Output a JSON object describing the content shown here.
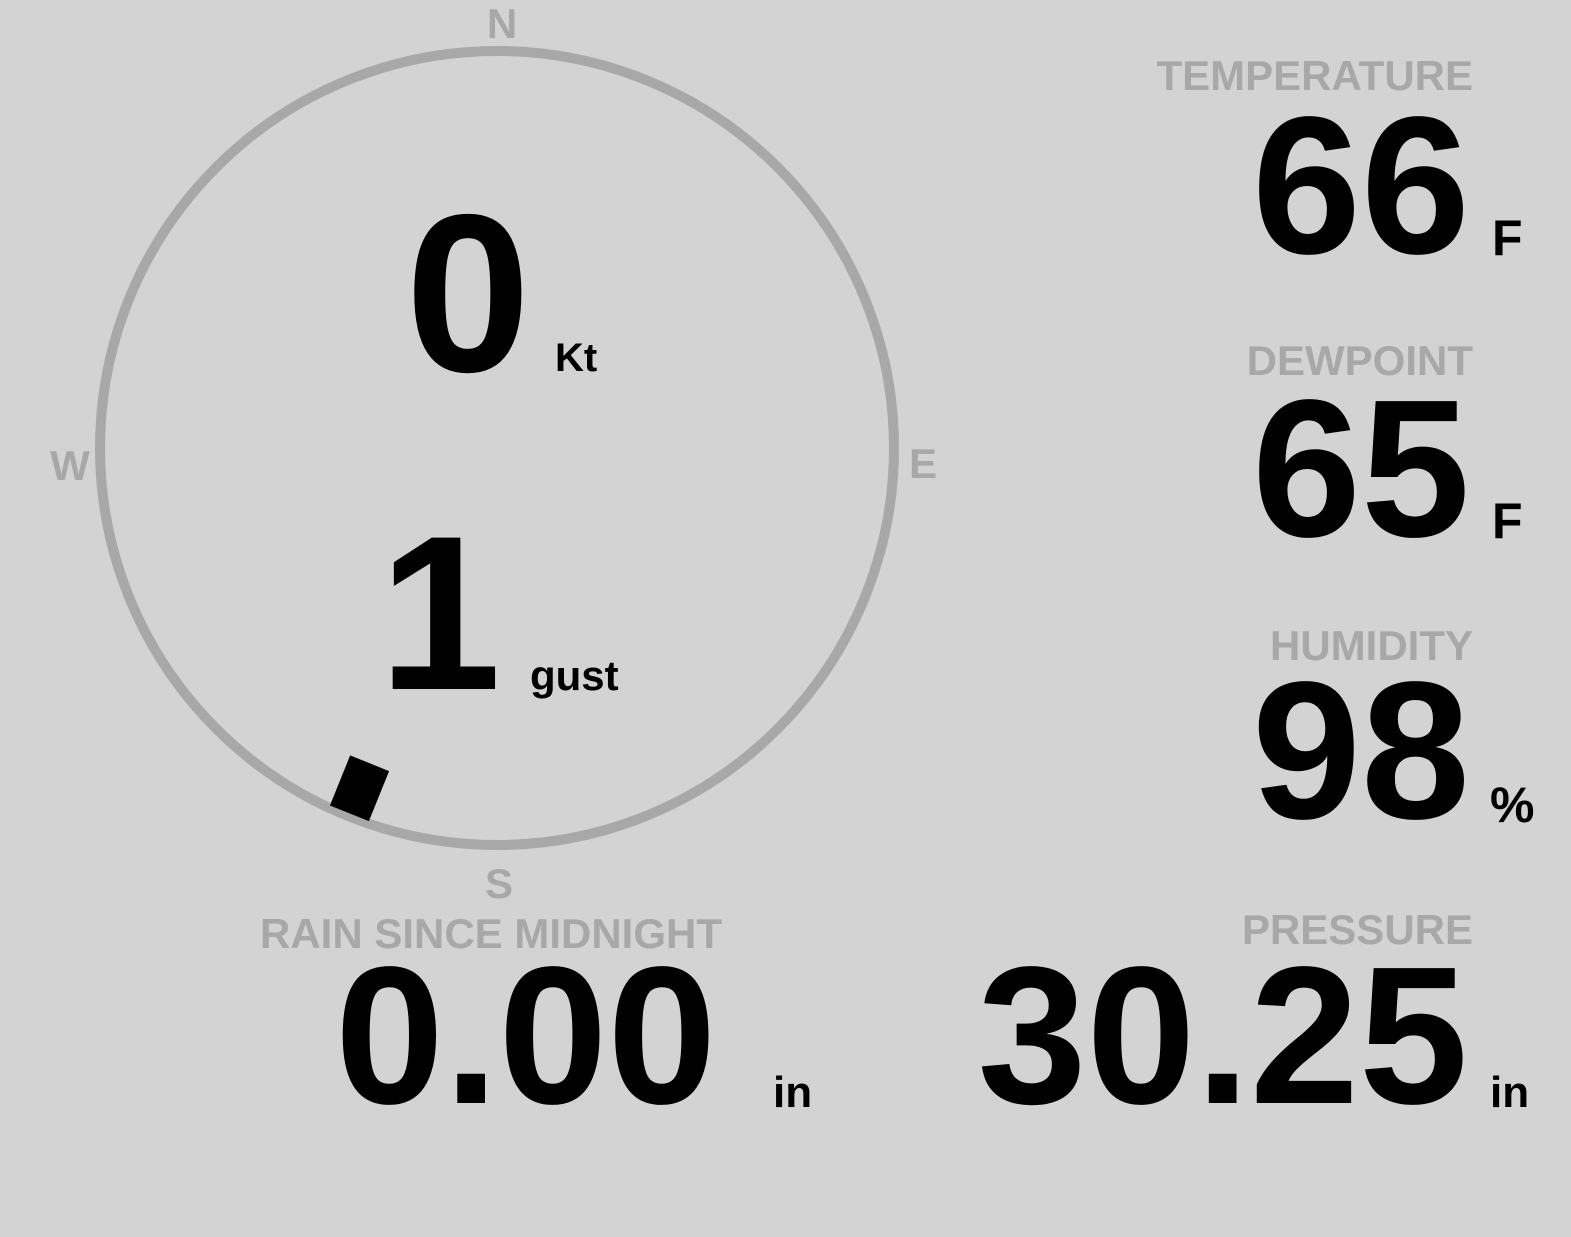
{
  "colors": {
    "background": "#d3d3d3",
    "label": "#a8a8a8",
    "value": "#000000",
    "dial": "#a8a8a8"
  },
  "wind": {
    "compass": {
      "north": "N",
      "east": "E",
      "south": "S",
      "west": "W"
    },
    "speed": "0",
    "speed_unit": "Kt",
    "gust": "1",
    "gust_unit": "gust",
    "direction_degrees": 202
  },
  "temperature": {
    "label": "TEMPERATURE",
    "value": "66",
    "unit": "F"
  },
  "dewpoint": {
    "label": "DEWPOINT",
    "value": "65",
    "unit": "F"
  },
  "humidity": {
    "label": "HUMIDITY",
    "value": "98",
    "unit": "%"
  },
  "rain": {
    "label": "RAIN SINCE MIDNIGHT",
    "value": "0.00",
    "unit": "in"
  },
  "pressure": {
    "label": "PRESSURE",
    "value": "30.25",
    "unit": "in"
  }
}
